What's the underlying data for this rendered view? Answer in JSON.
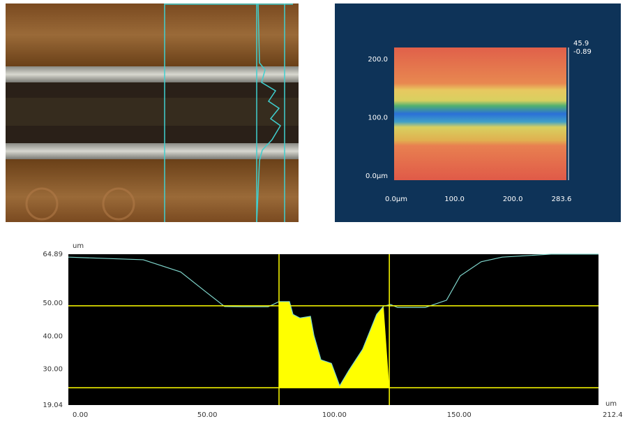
{
  "chart_data": [
    {
      "type": "surface",
      "xlim": [
        0,
        283.6
      ],
      "xticks": [
        {
          "value": 0,
          "label": "0.0µm"
        },
        {
          "value": 100,
          "label": "100.0"
        },
        {
          "value": 200,
          "label": "200.0"
        },
        283.6
      ],
      "ylim": [
        0,
        200
      ],
      "yticks": [
        {
          "value": 0,
          "label": "0.0µm"
        },
        {
          "value": 100,
          "label": "100.0"
        },
        {
          "value": 200,
          "label": "200.0"
        }
      ],
      "zlim": [
        -0.89,
        45.9
      ]
    },
    {
      "type": "line",
      "x_label": "um",
      "y_label": "um",
      "x": [
        0,
        30,
        45,
        55,
        62.6,
        70,
        80,
        82,
        84.4,
        88.6,
        90,
        92.8,
        97,
        98.4,
        101.2,
        105.4,
        108.7,
        112.4,
        117.9,
        123.5,
        126.3,
        129.1,
        131.9,
        143,
        151.5,
        157,
        165.4,
        173.8,
        193.4,
        212.4
      ],
      "series": [
        {
          "color": "#7fd6cc",
          "values": [
            64.0,
            63.2,
            59.5,
            53.5,
            49.0,
            48.9,
            48.9,
            49.6,
            50.5,
            50.5,
            46.6,
            45.5,
            46.0,
            40.2,
            32.8,
            31.7,
            24.9,
            29.6,
            36.0,
            46.6,
            49.1,
            49.6,
            48.7,
            48.7,
            50.9,
            58.3,
            62.6,
            64.0,
            64.9,
            64.9
          ]
        }
      ],
      "xlim": [
        0,
        212.4
      ],
      "xticks": [
        {
          "value": 0,
          "label": "0.00"
        },
        {
          "value": 50,
          "label": "50.00"
        },
        {
          "value": 100,
          "label": "100.00"
        },
        {
          "value": 150,
          "label": "150.00"
        },
        212.4
      ],
      "ylim": [
        19.04,
        64.89
      ],
      "yticks": [
        19.04,
        {
          "value": 30,
          "label": "30.00"
        },
        {
          "value": 40,
          "label": "40.00"
        },
        {
          "value": 50,
          "label": "50.00"
        },
        64.89
      ],
      "cursor_x": [
        84.4,
        128.6
      ],
      "cursor_y": [
        49.2,
        24.3
      ],
      "cursor_color": "#ffff00"
    }
  ]
}
